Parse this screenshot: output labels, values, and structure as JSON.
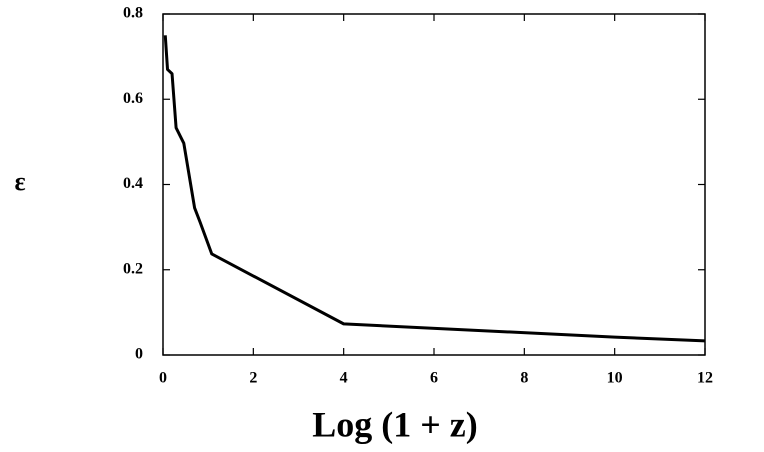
{
  "chart_data": {
    "type": "line",
    "x_label": "Log (1 + z)",
    "y_label": "ε",
    "x": [
      0.05,
      0.1,
      0.2,
      0.29,
      0.46,
      0.7,
      0.82,
      1.08,
      4,
      10,
      12
    ],
    "series": [
      {
        "color": "#000000",
        "values": [
          0.75,
          0.67,
          0.66,
          0.533,
          0.497,
          0.345,
          0.312,
          0.237,
          0.073,
          0.042,
          0.033
        ]
      }
    ],
    "xlim": [
      0,
      12
    ],
    "xticks": [
      0,
      2,
      4,
      6,
      8,
      10,
      12
    ],
    "ylim": [
      0,
      0.8
    ],
    "yticks": [
      0,
      0.2,
      0.4,
      0.6,
      0.8
    ]
  }
}
